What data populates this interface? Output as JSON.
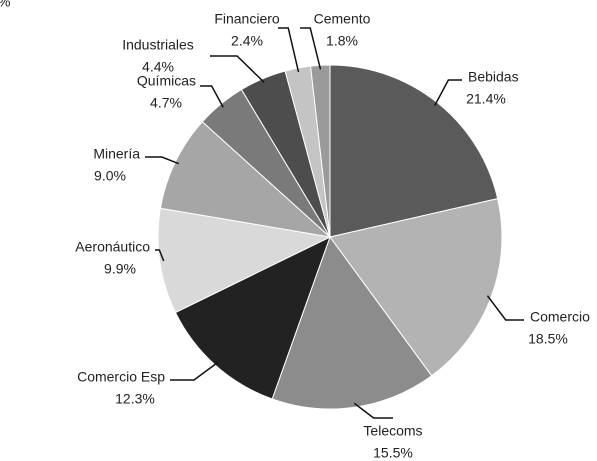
{
  "chart_data": {
    "type": "pie",
    "unit_label": "%",
    "categories": [
      "Bebidas",
      "Comercio",
      "Telecoms",
      "Comercio Esp",
      "Aeronáutico",
      "Minería",
      "Químicas",
      "Industriales",
      "Financiero",
      "Cemento"
    ],
    "values": [
      21.4,
      18.5,
      15.5,
      12.3,
      9.9,
      9.0,
      4.7,
      4.4,
      2.4,
      1.8
    ],
    "value_labels": [
      "21.4%",
      "18.5%",
      "15.5%",
      "12.3%",
      "9.9%",
      "9.0%",
      "4.7%",
      "4.4%",
      "2.4%",
      "1.8%"
    ],
    "colors": [
      "#5a5a5a",
      "#b3b3b3",
      "#8c8c8c",
      "#222222",
      "#d9d9d9",
      "#a6a6a6",
      "#7a7a7a",
      "#4d4d4d",
      "#c4c4c4",
      "#9a9a9a"
    ]
  }
}
